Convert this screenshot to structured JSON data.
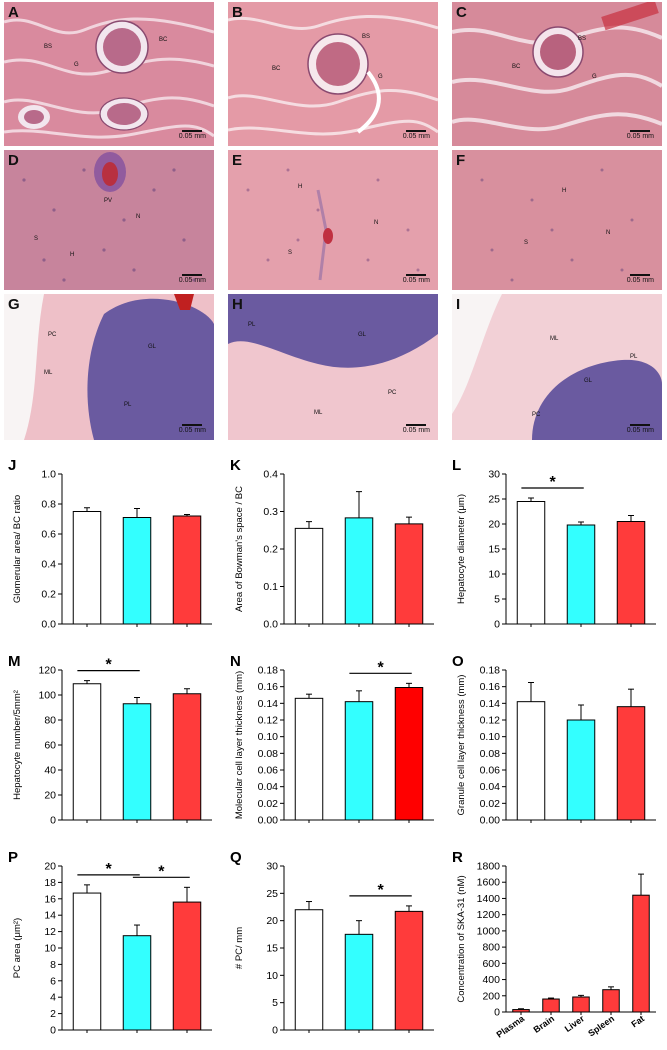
{
  "histology": [
    {
      "label": "A",
      "scale": "0.05 mm",
      "kind": "kidney",
      "annotations": [
        "BS",
        "BC",
        "G"
      ]
    },
    {
      "label": "B",
      "scale": "0.05 mm",
      "kind": "kidney",
      "annotations": [
        "BS",
        "BC",
        "G"
      ]
    },
    {
      "label": "C",
      "scale": "0.05 mm",
      "kind": "kidney",
      "annotations": [
        "BS",
        "BC",
        "G"
      ]
    },
    {
      "label": "D",
      "scale": "0.05 mm",
      "kind": "liver",
      "annotations": [
        "PV",
        "N",
        "H",
        "S"
      ]
    },
    {
      "label": "E",
      "scale": "0.05 mm",
      "kind": "liver",
      "annotations": [
        "H",
        "N",
        "S"
      ]
    },
    {
      "label": "F",
      "scale": "0.05 mm",
      "kind": "liver",
      "annotations": [
        "H",
        "N",
        "S"
      ]
    },
    {
      "label": "G",
      "scale": "0.05 mm",
      "kind": "cerebellum",
      "annotations": [
        "PC",
        "GL",
        "ML",
        "PL"
      ]
    },
    {
      "label": "H",
      "scale": "0.05 mm",
      "kind": "cerebellum",
      "annotations": [
        "PL",
        "GL",
        "PC",
        "ML"
      ]
    },
    {
      "label": "I",
      "scale": "0.05 mm",
      "kind": "cerebellum",
      "annotations": [
        "ML",
        "PL",
        "GL",
        "PC"
      ]
    }
  ],
  "colors": {
    "white_bar": "#ffffff",
    "cyan_bar": "#33ffff",
    "red_bar": "#ff3b3b",
    "dark_red_bar": "#ff0000"
  },
  "chart_data": [
    {
      "label": "J",
      "type": "bar",
      "ylabel": "Glomerular area/ BC ratio",
      "ylim": [
        0,
        1.0
      ],
      "ticks": [
        "0.0",
        "0.2",
        "0.4",
        "0.6",
        "0.8",
        "1.0"
      ],
      "values": [
        0.75,
        0.71,
        0.72
      ],
      "errors": [
        0.025,
        0.06,
        0.01
      ],
      "colors": [
        "#ffffff",
        "#33ffff",
        "#ff3b3b"
      ],
      "sig": []
    },
    {
      "label": "K",
      "type": "bar",
      "ylabel": "Area of Bowman's space / BC",
      "ylim": [
        0,
        0.4
      ],
      "ticks": [
        "0.0",
        "0.1",
        "0.2",
        "0.3",
        "0.4"
      ],
      "values": [
        0.255,
        0.283,
        0.267
      ],
      "errors": [
        0.018,
        0.07,
        0.018
      ],
      "colors": [
        "#ffffff",
        "#33ffff",
        "#ff3b3b"
      ],
      "sig": []
    },
    {
      "label": "L",
      "type": "bar",
      "ylabel": "Hepatocyte diameter (μm)",
      "ylim": [
        0,
        30
      ],
      "ticks": [
        "0",
        "5",
        "10",
        "15",
        "20",
        "25",
        "30"
      ],
      "values": [
        24.5,
        19.8,
        20.5
      ],
      "errors": [
        0.7,
        0.6,
        1.2
      ],
      "colors": [
        "#ffffff",
        "#33ffff",
        "#ff3b3b"
      ],
      "sig": [
        [
          0,
          1
        ]
      ]
    },
    {
      "label": "M",
      "type": "bar",
      "ylabel": "Hepatocyte number/5mm²",
      "ylim": [
        0,
        120
      ],
      "ticks": [
        "0",
        "20",
        "40",
        "60",
        "80",
        "100",
        "120"
      ],
      "values": [
        109,
        93,
        101
      ],
      "errors": [
        2.5,
        5,
        4
      ],
      "colors": [
        "#ffffff",
        "#33ffff",
        "#ff3b3b"
      ],
      "sig": [
        [
          0,
          1
        ]
      ]
    },
    {
      "label": "N",
      "type": "bar",
      "ylabel": "Molecular cell layer thickness (mm)",
      "ylim": [
        0,
        0.18
      ],
      "ticks": [
        "0.00",
        "0.02",
        "0.04",
        "0.06",
        "0.08",
        "0.10",
        "0.12",
        "0.14",
        "0.16",
        "0.18"
      ],
      "values": [
        0.146,
        0.142,
        0.159
      ],
      "errors": [
        0.005,
        0.013,
        0.005
      ],
      "colors": [
        "#ffffff",
        "#33ffff",
        "#ff0000"
      ],
      "sig": [
        [
          1,
          2
        ]
      ]
    },
    {
      "label": "O",
      "type": "bar",
      "ylabel": "Granule cell layer thickness (mm)",
      "ylim": [
        0,
        0.18
      ],
      "ticks": [
        "0.00",
        "0.02",
        "0.04",
        "0.06",
        "0.08",
        "0.10",
        "0.12",
        "0.14",
        "0.16",
        "0.18"
      ],
      "values": [
        0.142,
        0.12,
        0.136
      ],
      "errors": [
        0.023,
        0.018,
        0.021
      ],
      "colors": [
        "#ffffff",
        "#33ffff",
        "#ff3b3b"
      ],
      "sig": []
    },
    {
      "label": "P",
      "type": "bar",
      "ylabel": "PC area (μm²)",
      "ylim": [
        0,
        20
      ],
      "ticks": [
        "0",
        "2",
        "4",
        "6",
        "8",
        "10",
        "12",
        "14",
        "16",
        "18",
        "20"
      ],
      "values": [
        16.7,
        11.5,
        15.6
      ],
      "errors": [
        1.0,
        1.3,
        1.8
      ],
      "colors": [
        "#ffffff",
        "#33ffff",
        "#ff3b3b"
      ],
      "sig": [
        [
          0,
          1
        ],
        [
          1,
          2
        ]
      ]
    },
    {
      "label": "Q",
      "type": "bar",
      "ylabel": "# PC/ mm",
      "ylim": [
        0,
        30
      ],
      "ticks": [
        "0",
        "5",
        "10",
        "15",
        "20",
        "25",
        "30"
      ],
      "values": [
        22,
        17.5,
        21.7
      ],
      "errors": [
        1.5,
        2.5,
        1.0
      ],
      "colors": [
        "#ffffff",
        "#33ffff",
        "#ff3b3b"
      ],
      "sig": [
        [
          1,
          2
        ]
      ]
    },
    {
      "label": "R",
      "type": "bar",
      "ylabel": "Concentration of SKA-31 (nM)",
      "ylim": [
        0,
        1800
      ],
      "ticks": [
        "0",
        "200",
        "400",
        "600",
        "800",
        "1000",
        "1200",
        "1400",
        "1600",
        "1800"
      ],
      "categories": [
        "Plasma",
        "Brain",
        "Liver",
        "Spleen",
        "Fat"
      ],
      "values": [
        30,
        160,
        185,
        275,
        1440
      ],
      "errors": [
        10,
        12,
        20,
        35,
        260
      ],
      "colors": [
        "#ff3b3b",
        "#ff3b3b",
        "#ff3b3b",
        "#ff3b3b",
        "#ff3b3b"
      ],
      "sig": []
    }
  ]
}
